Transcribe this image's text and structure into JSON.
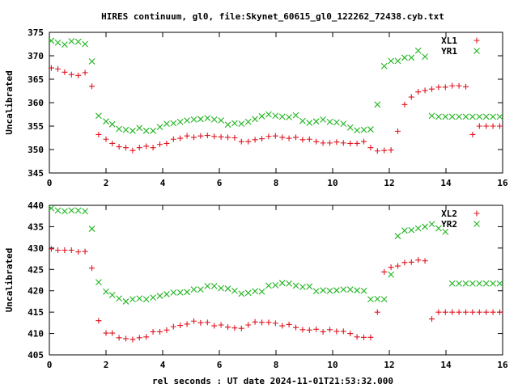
{
  "title": "HIRES continuum, gl0, file:Skynet_60615_gl0_122262_72438.cyb.txt",
  "xlabel": "rel seconds : UT date 2024-11-01T21:53:32.000",
  "colors": {
    "red": "#e0141e",
    "green": "#1eb41e",
    "axis": "#000000"
  },
  "chart_data": [
    {
      "type": "scatter",
      "ylabel": "Uncalibrated",
      "xlim": [
        0,
        16
      ],
      "ylim": [
        345,
        375
      ],
      "xticks": [
        0,
        2,
        4,
        6,
        8,
        10,
        12,
        14,
        16
      ],
      "yticks": [
        345,
        350,
        355,
        360,
        365,
        370,
        375
      ],
      "grid": false,
      "legend": "top-right",
      "series": [
        {
          "name": "XL1",
          "marker": "plus",
          "color": "#e0141e",
          "x": [
            0.07,
            0.3,
            0.54,
            0.78,
            1.02,
            1.26,
            1.5,
            1.74,
            2.0,
            2.22,
            2.46,
            2.7,
            2.94,
            3.18,
            3.42,
            3.66,
            3.9,
            4.14,
            4.38,
            4.62,
            4.86,
            5.1,
            5.34,
            5.58,
            5.82,
            6.06,
            6.3,
            6.54,
            6.78,
            7.02,
            7.26,
            7.5,
            7.74,
            7.98,
            8.22,
            8.46,
            8.7,
            8.94,
            9.18,
            9.42,
            9.66,
            9.9,
            10.14,
            10.38,
            10.62,
            10.86,
            11.1,
            11.34,
            11.58,
            11.82,
            12.06,
            12.3,
            12.54,
            12.78,
            13.02,
            13.26,
            13.5,
            13.74,
            13.98,
            14.22,
            14.46,
            14.7,
            14.94,
            15.18,
            15.42,
            15.66,
            15.9
          ],
          "values": [
            367.4,
            367.2,
            366.5,
            366.0,
            365.8,
            366.4,
            363.5,
            353.2,
            352.2,
            351.3,
            350.6,
            350.4,
            349.8,
            350.4,
            350.7,
            350.4,
            351.1,
            351.3,
            352.2,
            352.4,
            352.9,
            352.6,
            352.9,
            353.0,
            352.8,
            352.7,
            352.6,
            352.5,
            351.7,
            351.7,
            352.1,
            352.3,
            352.8,
            352.9,
            352.6,
            352.4,
            352.6,
            352.1,
            352.2,
            351.7,
            351.4,
            351.4,
            351.6,
            351.4,
            351.3,
            351.3,
            351.7,
            350.4,
            349.7,
            349.8,
            349.9,
            353.9,
            359.6,
            361.2,
            362.3,
            362.6,
            362.9,
            363.3,
            363.3,
            363.6,
            363.6,
            363.4,
            353.2,
            355.0,
            355.0,
            355.0,
            355.0
          ]
        },
        {
          "name": "YR1",
          "marker": "cross",
          "color": "#1eb41e",
          "x": [
            0.07,
            0.3,
            0.54,
            0.78,
            1.02,
            1.26,
            1.5,
            1.74,
            2.0,
            2.22,
            2.46,
            2.7,
            2.94,
            3.18,
            3.42,
            3.66,
            3.9,
            4.14,
            4.38,
            4.62,
            4.86,
            5.1,
            5.34,
            5.58,
            5.82,
            6.06,
            6.3,
            6.54,
            6.78,
            7.02,
            7.26,
            7.5,
            7.74,
            7.98,
            8.22,
            8.46,
            8.7,
            8.94,
            9.18,
            9.42,
            9.66,
            9.9,
            10.14,
            10.38,
            10.62,
            10.86,
            11.1,
            11.34,
            11.58,
            11.82,
            12.06,
            12.3,
            12.54,
            12.78,
            13.02,
            13.26,
            13.5,
            13.74,
            13.98,
            14.22,
            14.46,
            14.7,
            14.94,
            15.18,
            15.42,
            15.66,
            15.9
          ],
          "values": [
            373.2,
            372.8,
            372.4,
            373.1,
            373.0,
            372.5,
            368.8,
            357.2,
            356.0,
            355.4,
            354.4,
            354.2,
            354.0,
            354.6,
            354.0,
            354.0,
            354.8,
            355.5,
            355.6,
            355.9,
            356.2,
            356.4,
            356.5,
            356.7,
            356.4,
            356.2,
            355.3,
            355.6,
            355.5,
            355.9,
            356.5,
            357.1,
            357.5,
            357.2,
            357.0,
            356.9,
            357.3,
            356.1,
            355.7,
            356.0,
            356.4,
            355.9,
            355.8,
            355.5,
            354.7,
            354.1,
            354.2,
            354.3,
            359.6,
            367.8,
            368.9,
            368.9,
            369.6,
            369.6,
            371.1,
            369.8,
            357.2,
            357.0,
            357.0,
            357.0,
            357.0,
            357.0,
            357.0,
            357.0,
            357.0,
            357.0,
            357.0
          ]
        }
      ]
    },
    {
      "type": "scatter",
      "ylabel": "Uncalibrated",
      "xlim": [
        0,
        16
      ],
      "ylim": [
        405,
        440
      ],
      "xticks": [
        0,
        2,
        4,
        6,
        8,
        10,
        12,
        14,
        16
      ],
      "yticks": [
        405,
        410,
        415,
        420,
        425,
        430,
        435,
        440
      ],
      "grid": false,
      "legend": "top-right",
      "series": [
        {
          "name": "XL2",
          "marker": "plus",
          "color": "#e0141e",
          "x": [
            0.07,
            0.3,
            0.54,
            0.78,
            1.02,
            1.26,
            1.5,
            1.74,
            2.0,
            2.22,
            2.46,
            2.7,
            2.94,
            3.18,
            3.42,
            3.66,
            3.9,
            4.14,
            4.38,
            4.62,
            4.86,
            5.1,
            5.34,
            5.58,
            5.82,
            6.06,
            6.3,
            6.54,
            6.78,
            7.02,
            7.26,
            7.5,
            7.74,
            7.98,
            8.22,
            8.46,
            8.7,
            8.94,
            9.18,
            9.42,
            9.66,
            9.9,
            10.14,
            10.38,
            10.62,
            10.86,
            11.1,
            11.34,
            11.58,
            11.82,
            12.06,
            12.3,
            12.54,
            12.78,
            13.02,
            13.26,
            13.5,
            13.74,
            13.98,
            14.22,
            14.46,
            14.7,
            14.94,
            15.18,
            15.42,
            15.66,
            15.9
          ],
          "values": [
            429.8,
            429.5,
            429.5,
            429.5,
            429.1,
            429.2,
            425.3,
            413.0,
            410.1,
            410.1,
            409.0,
            408.8,
            408.6,
            409.0,
            409.2,
            410.4,
            410.4,
            410.8,
            411.6,
            411.9,
            412.2,
            412.9,
            412.5,
            412.6,
            411.8,
            412.0,
            411.5,
            411.3,
            411.2,
            412.0,
            412.7,
            412.6,
            412.6,
            412.4,
            411.8,
            412.1,
            411.4,
            410.9,
            410.8,
            411.0,
            410.4,
            410.9,
            410.5,
            410.5,
            410.0,
            409.2,
            409.1,
            409.1,
            415.0,
            424.4,
            425.5,
            425.8,
            426.6,
            426.7,
            427.2,
            427.0,
            413.4,
            415.0,
            415.0,
            415.0,
            415.0,
            415.0,
            415.0,
            415.0,
            415.0,
            415.0,
            415.0
          ]
        },
        {
          "name": "YR2",
          "marker": "cross",
          "color": "#1eb41e",
          "x": [
            0.07,
            0.3,
            0.54,
            0.78,
            1.02,
            1.26,
            1.5,
            1.74,
            2.0,
            2.22,
            2.46,
            2.7,
            2.94,
            3.18,
            3.42,
            3.66,
            3.9,
            4.14,
            4.38,
            4.62,
            4.86,
            5.1,
            5.34,
            5.58,
            5.82,
            6.06,
            6.3,
            6.54,
            6.78,
            7.02,
            7.26,
            7.5,
            7.74,
            7.98,
            8.22,
            8.46,
            8.7,
            8.94,
            9.18,
            9.42,
            9.66,
            9.9,
            10.14,
            10.38,
            10.62,
            10.86,
            11.1,
            11.34,
            11.58,
            11.82,
            12.06,
            12.3,
            12.54,
            12.78,
            13.02,
            13.26,
            13.5,
            13.74,
            13.98,
            14.22,
            14.46,
            14.7,
            14.94,
            15.18,
            15.42,
            15.66,
            15.9
          ],
          "values": [
            439.3,
            438.8,
            438.6,
            438.8,
            438.8,
            438.6,
            434.5,
            422.0,
            419.8,
            419.0,
            418.2,
            417.5,
            418.0,
            418.2,
            418.0,
            418.4,
            418.8,
            419.2,
            419.6,
            419.6,
            419.7,
            420.3,
            420.3,
            421.1,
            421.1,
            420.6,
            420.5,
            420.0,
            419.3,
            419.5,
            419.9,
            419.8,
            421.2,
            421.3,
            421.8,
            421.7,
            421.2,
            420.9,
            421.0,
            419.9,
            420.1,
            420.0,
            420.1,
            420.3,
            420.3,
            420.1,
            420.0,
            418.0,
            418.1,
            418.0,
            423.8,
            432.8,
            434.1,
            434.2,
            434.6,
            435.0,
            435.6,
            434.6,
            433.8,
            421.7,
            421.7,
            421.7,
            421.7,
            421.7,
            421.7,
            421.7,
            421.7
          ]
        }
      ]
    }
  ]
}
